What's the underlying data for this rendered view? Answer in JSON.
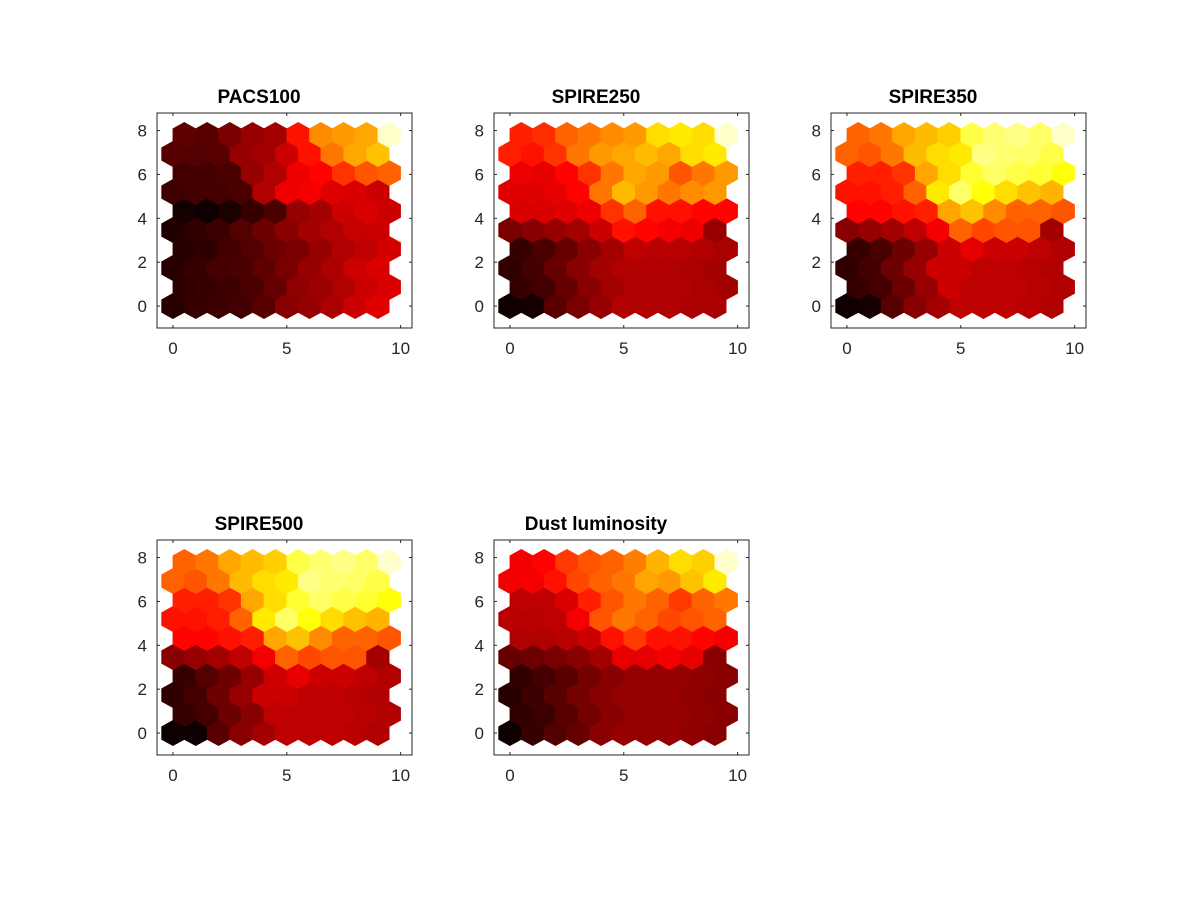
{
  "chart_data": [
    {
      "type": "heatmap",
      "title": "PACS100",
      "xlim": [
        -0.7,
        10.5
      ],
      "ylim": [
        -1,
        8.8
      ],
      "xticks": [
        "0",
        "5",
        "10"
      ],
      "yticks": [
        "0",
        "2",
        "4",
        "6",
        "8"
      ],
      "colormap": "hot",
      "grid": "hexagonal 10x10",
      "values": [
        [
          0.06,
          0.08,
          0.09,
          0.1,
          0.13,
          0.2,
          0.22,
          0.25,
          0.3,
          0.33
        ],
        [
          0.07,
          0.08,
          0.09,
          0.11,
          0.15,
          0.21,
          0.23,
          0.26,
          0.3,
          0.32
        ],
        [
          0.06,
          0.08,
          0.1,
          0.11,
          0.14,
          0.18,
          0.22,
          0.25,
          0.3,
          0.32
        ],
        [
          0.06,
          0.07,
          0.1,
          0.12,
          0.16,
          0.18,
          0.22,
          0.26,
          0.28,
          0.31
        ],
        [
          0.05,
          0.07,
          0.09,
          0.12,
          0.16,
          0.2,
          0.24,
          0.26,
          0.29,
          0.3
        ],
        [
          0.03,
          0.02,
          0.04,
          0.08,
          0.11,
          0.22,
          0.24,
          0.3,
          0.32,
          0.3
        ],
        [
          0.09,
          0.1,
          0.1,
          0.11,
          0.26,
          0.35,
          0.36,
          0.33,
          0.32,
          0.3
        ],
        [
          0.1,
          0.1,
          0.11,
          0.22,
          0.26,
          0.35,
          0.38,
          0.45,
          0.5,
          0.52
        ],
        [
          0.13,
          0.12,
          0.13,
          0.22,
          0.24,
          0.3,
          0.4,
          0.55,
          0.62,
          0.66
        ],
        [
          0.14,
          0.13,
          0.18,
          0.22,
          0.24,
          0.4,
          0.58,
          0.6,
          0.62,
          0.95
        ]
      ]
    },
    {
      "type": "heatmap",
      "title": "SPIRE250",
      "xlim": [
        -0.7,
        10.5
      ],
      "ylim": [
        -1,
        8.8
      ],
      "xticks": [
        "0",
        "5",
        "10"
      ],
      "yticks": [
        "0",
        "2",
        "4",
        "6",
        "8"
      ],
      "colormap": "hot",
      "grid": "hexagonal 10x10",
      "values": [
        [
          0.02,
          0.03,
          0.13,
          0.18,
          0.22,
          0.26,
          0.26,
          0.26,
          0.25,
          0.25
        ],
        [
          0.08,
          0.1,
          0.15,
          0.2,
          0.24,
          0.26,
          0.26,
          0.26,
          0.25,
          0.24
        ],
        [
          0.07,
          0.1,
          0.15,
          0.2,
          0.24,
          0.26,
          0.26,
          0.26,
          0.25,
          0.24
        ],
        [
          0.08,
          0.11,
          0.15,
          0.2,
          0.24,
          0.28,
          0.27,
          0.27,
          0.26,
          0.25
        ],
        [
          0.18,
          0.2,
          0.22,
          0.24,
          0.3,
          0.4,
          0.38,
          0.36,
          0.35,
          0.22
        ],
        [
          0.32,
          0.32,
          0.33,
          0.35,
          0.45,
          0.52,
          0.4,
          0.4,
          0.38,
          0.38
        ],
        [
          0.33,
          0.33,
          0.34,
          0.38,
          0.55,
          0.65,
          0.6,
          0.55,
          0.58,
          0.6
        ],
        [
          0.35,
          0.34,
          0.38,
          0.45,
          0.55,
          0.62,
          0.6,
          0.5,
          0.55,
          0.6
        ],
        [
          0.42,
          0.4,
          0.45,
          0.55,
          0.6,
          0.62,
          0.65,
          0.62,
          0.7,
          0.72
        ],
        [
          0.42,
          0.44,
          0.52,
          0.55,
          0.58,
          0.6,
          0.7,
          0.72,
          0.7,
          0.95
        ]
      ]
    },
    {
      "type": "heatmap",
      "title": "SPIRE350",
      "xlim": [
        -0.7,
        10.5
      ],
      "ylim": [
        -1,
        8.8
      ],
      "xticks": [
        "0",
        "5",
        "10"
      ],
      "yticks": [
        "0",
        "2",
        "4",
        "6",
        "8"
      ],
      "colormap": "hot",
      "grid": "hexagonal 10x10",
      "values": [
        [
          0.02,
          0.03,
          0.13,
          0.2,
          0.24,
          0.28,
          0.28,
          0.28,
          0.27,
          0.26
        ],
        [
          0.08,
          0.1,
          0.16,
          0.22,
          0.3,
          0.28,
          0.28,
          0.28,
          0.27,
          0.26
        ],
        [
          0.07,
          0.1,
          0.16,
          0.22,
          0.3,
          0.3,
          0.28,
          0.28,
          0.27,
          0.26
        ],
        [
          0.08,
          0.11,
          0.16,
          0.22,
          0.3,
          0.34,
          0.3,
          0.3,
          0.28,
          0.26
        ],
        [
          0.2,
          0.22,
          0.24,
          0.28,
          0.36,
          0.52,
          0.48,
          0.5,
          0.5,
          0.24
        ],
        [
          0.38,
          0.38,
          0.4,
          0.42,
          0.62,
          0.66,
          0.58,
          0.52,
          0.52,
          0.5
        ],
        [
          0.4,
          0.4,
          0.42,
          0.52,
          0.72,
          0.85,
          0.76,
          0.7,
          0.66,
          0.64
        ],
        [
          0.42,
          0.42,
          0.45,
          0.62,
          0.7,
          0.8,
          0.85,
          0.82,
          0.8,
          0.76
        ],
        [
          0.52,
          0.5,
          0.55,
          0.65,
          0.7,
          0.72,
          0.88,
          0.86,
          0.85,
          0.82
        ],
        [
          0.52,
          0.55,
          0.62,
          0.65,
          0.68,
          0.82,
          0.86,
          0.88,
          0.85,
          0.95
        ]
      ]
    },
    {
      "type": "heatmap",
      "title": "SPIRE500",
      "xlim": [
        -0.7,
        10.5
      ],
      "ylim": [
        -1,
        8.8
      ],
      "xticks": [
        "0",
        "5",
        "10"
      ],
      "yticks": [
        "0",
        "2",
        "4",
        "6",
        "8"
      ],
      "colormap": "hot",
      "grid": "hexagonal 10x10",
      "values": [
        [
          0.02,
          0.02,
          0.13,
          0.2,
          0.24,
          0.28,
          0.28,
          0.28,
          0.27,
          0.26
        ],
        [
          0.08,
          0.1,
          0.16,
          0.2,
          0.28,
          0.28,
          0.28,
          0.28,
          0.27,
          0.26
        ],
        [
          0.07,
          0.1,
          0.16,
          0.22,
          0.3,
          0.3,
          0.28,
          0.28,
          0.27,
          0.26
        ],
        [
          0.08,
          0.12,
          0.16,
          0.22,
          0.3,
          0.34,
          0.3,
          0.3,
          0.28,
          0.26
        ],
        [
          0.2,
          0.22,
          0.24,
          0.28,
          0.36,
          0.52,
          0.48,
          0.5,
          0.5,
          0.24
        ],
        [
          0.38,
          0.38,
          0.4,
          0.42,
          0.62,
          0.66,
          0.58,
          0.52,
          0.52,
          0.5
        ],
        [
          0.4,
          0.4,
          0.42,
          0.52,
          0.72,
          0.85,
          0.76,
          0.7,
          0.66,
          0.64
        ],
        [
          0.42,
          0.42,
          0.45,
          0.62,
          0.7,
          0.8,
          0.85,
          0.82,
          0.8,
          0.76
        ],
        [
          0.52,
          0.5,
          0.55,
          0.65,
          0.7,
          0.72,
          0.88,
          0.86,
          0.85,
          0.82
        ],
        [
          0.52,
          0.55,
          0.62,
          0.65,
          0.68,
          0.82,
          0.86,
          0.88,
          0.85,
          0.95
        ]
      ]
    },
    {
      "type": "heatmap",
      "title": "Dust luminosity",
      "xlim": [
        -0.7,
        10.5
      ],
      "ylim": [
        -1,
        8.8
      ],
      "xticks": [
        "0",
        "5",
        "10"
      ],
      "yticks": [
        "0",
        "2",
        "4",
        "6",
        "8"
      ],
      "colormap": "hot",
      "grid": "hexagonal 10x10",
      "values": [
        [
          0.02,
          0.08,
          0.12,
          0.15,
          0.2,
          0.22,
          0.22,
          0.22,
          0.21,
          0.2
        ],
        [
          0.07,
          0.09,
          0.13,
          0.17,
          0.2,
          0.22,
          0.22,
          0.22,
          0.21,
          0.2
        ],
        [
          0.06,
          0.09,
          0.13,
          0.17,
          0.2,
          0.22,
          0.22,
          0.22,
          0.21,
          0.2
        ],
        [
          0.07,
          0.1,
          0.13,
          0.17,
          0.2,
          0.22,
          0.22,
          0.22,
          0.21,
          0.2
        ],
        [
          0.15,
          0.16,
          0.18,
          0.2,
          0.24,
          0.34,
          0.34,
          0.36,
          0.34,
          0.2
        ],
        [
          0.26,
          0.26,
          0.27,
          0.3,
          0.4,
          0.46,
          0.4,
          0.4,
          0.38,
          0.36
        ],
        [
          0.27,
          0.27,
          0.28,
          0.36,
          0.5,
          0.55,
          0.52,
          0.48,
          0.5,
          0.52
        ],
        [
          0.28,
          0.28,
          0.32,
          0.42,
          0.5,
          0.55,
          0.52,
          0.46,
          0.52,
          0.55
        ],
        [
          0.36,
          0.36,
          0.4,
          0.48,
          0.52,
          0.55,
          0.62,
          0.6,
          0.66,
          0.72
        ],
        [
          0.36,
          0.38,
          0.46,
          0.5,
          0.52,
          0.56,
          0.64,
          0.7,
          0.68,
          0.95
        ]
      ]
    }
  ]
}
